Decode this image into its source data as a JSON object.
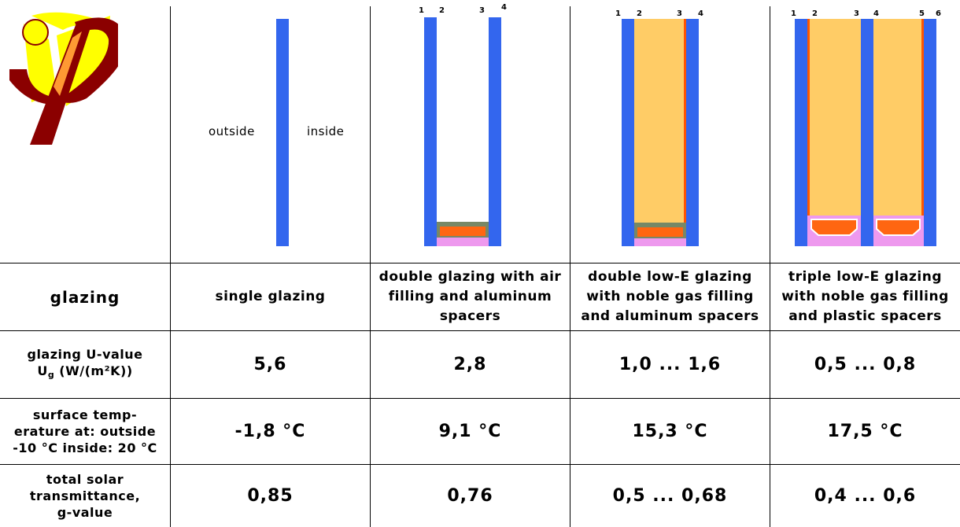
{
  "labels": {
    "outside": "outside",
    "inside": "inside"
  },
  "columns": [
    {
      "heading": "glazing"
    },
    {
      "heading": "single glazing"
    },
    {
      "heading": [
        "double glazing with air",
        "filling and aluminum",
        "spacers"
      ]
    },
    {
      "heading": [
        "double low-E glazing",
        "with noble gas filling",
        "and aluminum spacers"
      ]
    },
    {
      "heading": [
        "triple low-E glazing",
        "with noble gas filling",
        "and plastic spacers"
      ]
    }
  ],
  "rows": {
    "u_value": {
      "label_line1": "glazing U-value",
      "label_u": "U",
      "label_sub": "g",
      "label_rest": " (W/(m²K))",
      "values": [
        "5,6",
        "2,8",
        "1,0 ... 1,6",
        "0,5 ... 0,8"
      ]
    },
    "surface_temp": {
      "label": [
        "surface temp-",
        "erature at: outside",
        "-10 °C inside: 20 °C"
      ],
      "values": [
        "-1,8 °C",
        "9,1 °C",
        "15,3 °C",
        "17,5 °C"
      ]
    },
    "g_value": {
      "label": [
        "total solar",
        "transmittance,",
        "g-value"
      ],
      "values": [
        "0,85",
        "0,76",
        "0,5 ... 0,68",
        "0,4 ... 0,6"
      ]
    }
  },
  "pane_numbers": {
    "double": [
      "1",
      "2",
      "3",
      "4"
    ],
    "double_low_e": [
      "1",
      "2",
      "3",
      "4"
    ],
    "triple": [
      "1",
      "2",
      "3",
      "4",
      "5",
      "6"
    ]
  },
  "colors": {
    "glass": "#3366ee",
    "gas_fill": "#ffcc66",
    "coating": "#ff5500",
    "spacer": "#ff6611",
    "seal": "#ee99ee",
    "logo_yellow": "#ffff00",
    "logo_dark": "#8b0000",
    "logo_orange": "#ff9933"
  }
}
